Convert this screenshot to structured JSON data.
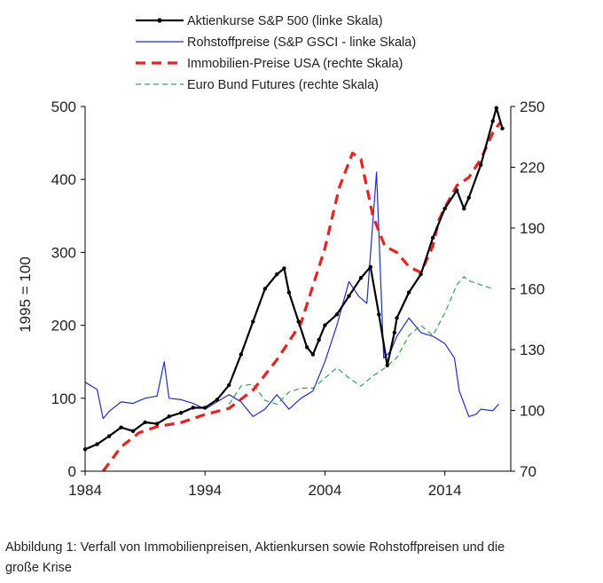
{
  "colors": {
    "sp500": "#000000",
    "commodities": "#1f2bd6",
    "housing": "#e8231f",
    "bund": "#2ea64a",
    "axis": "#000000",
    "text": "#222222"
  },
  "caption": {
    "line1": "Abbildung 1: Verfall von Immobilienpreisen, Aktienkursen sowie Rohstoffpreisen und die",
    "line2": "große Krise"
  },
  "chart_data": {
    "type": "line",
    "ylabel": "1995 = 100",
    "xlim": [
      1984,
      2019.5
    ],
    "ylim_left": [
      0,
      500
    ],
    "ylim_right": [
      70,
      250
    ],
    "x_ticks": [
      1984,
      1994,
      2004,
      2014
    ],
    "y_ticks_left": [
      0,
      100,
      200,
      300,
      400,
      500
    ],
    "y_ticks_right": [
      70,
      100,
      130,
      160,
      190,
      220,
      250
    ],
    "legend_position": "top-center",
    "series": [
      {
        "name": "Aktienkurse S&P 500 (linke Skala)",
        "axis": "left",
        "style": "solid-markers",
        "points": [
          [
            1984,
            30
          ],
          [
            1985,
            37
          ],
          [
            1986,
            48
          ],
          [
            1987,
            60
          ],
          [
            1988,
            55
          ],
          [
            1989,
            67
          ],
          [
            1990,
            65
          ],
          [
            1991,
            75
          ],
          [
            1992,
            80
          ],
          [
            1993,
            87
          ],
          [
            1994,
            87
          ],
          [
            1995,
            98
          ],
          [
            1996,
            118
          ],
          [
            1997,
            160
          ],
          [
            1998,
            205
          ],
          [
            1999,
            250
          ],
          [
            2000,
            270
          ],
          [
            2000.6,
            278
          ],
          [
            2001,
            245
          ],
          [
            2001.8,
            205
          ],
          [
            2002.5,
            170
          ],
          [
            2003,
            160
          ],
          [
            2003.5,
            180
          ],
          [
            2004,
            200
          ],
          [
            2005,
            215
          ],
          [
            2006,
            240
          ],
          [
            2007,
            265
          ],
          [
            2007.8,
            280
          ],
          [
            2008.5,
            215
          ],
          [
            2009.2,
            145
          ],
          [
            2009.8,
            190
          ],
          [
            2010,
            210
          ],
          [
            2011,
            245
          ],
          [
            2012,
            270
          ],
          [
            2013,
            320
          ],
          [
            2014,
            360
          ],
          [
            2015,
            385
          ],
          [
            2015.6,
            360
          ],
          [
            2016,
            375
          ],
          [
            2017,
            420
          ],
          [
            2018,
            480
          ],
          [
            2018.3,
            498
          ],
          [
            2018.8,
            470
          ]
        ]
      },
      {
        "name": "Rohstoffpreise (S&P GSCI - linke Skala)",
        "axis": "left",
        "style": "solid",
        "points": [
          [
            1984,
            122
          ],
          [
            1985,
            112
          ],
          [
            1985.5,
            72
          ],
          [
            1986,
            82
          ],
          [
            1987,
            95
          ],
          [
            1988,
            93
          ],
          [
            1989,
            100
          ],
          [
            1990,
            103
          ],
          [
            1990.6,
            150
          ],
          [
            1991,
            100
          ],
          [
            1992,
            98
          ],
          [
            1993,
            93
          ],
          [
            1994,
            85
          ],
          [
            1995,
            95
          ],
          [
            1996,
            105
          ],
          [
            1997,
            95
          ],
          [
            1998,
            75
          ],
          [
            1999,
            85
          ],
          [
            2000,
            105
          ],
          [
            2001,
            85
          ],
          [
            2002,
            100
          ],
          [
            2003,
            110
          ],
          [
            2004,
            150
          ],
          [
            2005,
            200
          ],
          [
            2006,
            260
          ],
          [
            2006.8,
            240
          ],
          [
            2007.5,
            230
          ],
          [
            2008.3,
            410
          ],
          [
            2008.9,
            155
          ],
          [
            2009.5,
            165
          ],
          [
            2010,
            185
          ],
          [
            2011,
            210
          ],
          [
            2012,
            190
          ],
          [
            2013,
            185
          ],
          [
            2014,
            175
          ],
          [
            2014.8,
            155
          ],
          [
            2015.2,
            110
          ],
          [
            2016,
            75
          ],
          [
            2016.6,
            78
          ],
          [
            2017,
            85
          ],
          [
            2018,
            83
          ],
          [
            2018.5,
            92
          ]
        ]
      },
      {
        "name": "Immobilien-Preise USA (rechte Skala)",
        "axis": "right",
        "style": "dashed",
        "points": [
          [
            1985.5,
            70
          ],
          [
            1987,
            82
          ],
          [
            1988.5,
            89
          ],
          [
            1990,
            92
          ],
          [
            1992,
            94
          ],
          [
            1994,
            98
          ],
          [
            1996,
            101
          ],
          [
            1998,
            110
          ],
          [
            2000,
            125
          ],
          [
            2002,
            143
          ],
          [
            2004,
            180
          ],
          [
            2005.2,
            210
          ],
          [
            2006.3,
            227
          ],
          [
            2007,
            224
          ],
          [
            2008,
            196
          ],
          [
            2009,
            181
          ],
          [
            2010,
            178
          ],
          [
            2011,
            171
          ],
          [
            2012,
            168
          ],
          [
            2013,
            181
          ],
          [
            2013.5,
            194
          ],
          [
            2014,
            200
          ],
          [
            2015,
            211
          ],
          [
            2016,
            215
          ],
          [
            2017,
            224
          ],
          [
            2018,
            237
          ],
          [
            2018.6,
            242
          ]
        ]
      },
      {
        "name": "Euro Bund Futures  (rechte Skala)",
        "axis": "right",
        "style": "dashed",
        "points": [
          [
            1996,
            103
          ],
          [
            1997,
            112
          ],
          [
            1998,
            113
          ],
          [
            1999,
            105
          ],
          [
            2000,
            103
          ],
          [
            2001,
            109
          ],
          [
            2002,
            111
          ],
          [
            2003,
            111
          ],
          [
            2004,
            116
          ],
          [
            2005,
            121
          ],
          [
            2006,
            116
          ],
          [
            2007,
            112
          ],
          [
            2008,
            117
          ],
          [
            2009,
            121
          ],
          [
            2010,
            126
          ],
          [
            2011,
            137
          ],
          [
            2012,
            142
          ],
          [
            2013,
            137
          ],
          [
            2014,
            148
          ],
          [
            2015,
            162
          ],
          [
            2015.6,
            166
          ],
          [
            2016,
            164
          ],
          [
            2017,
            162
          ],
          [
            2018,
            160
          ]
        ]
      }
    ]
  }
}
